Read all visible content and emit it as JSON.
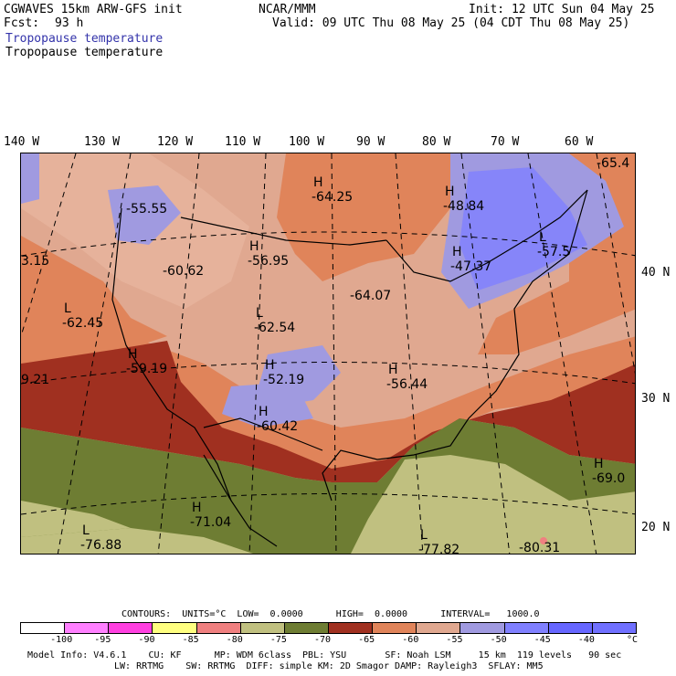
{
  "header": {
    "model_title": "CGWAVES 15km ARW-GFS init",
    "forecast_label": "Fcst:",
    "forecast_hours": "93 h",
    "org": "NCAR/MMM",
    "init": "Init: 12 UTC Sun 04 May 25",
    "valid": "Valid: 09 UTC Thu 08 May 25 (04 CDT Thu 08 May 25)",
    "field_1": "Tropopause temperature",
    "field_2": "Tropopause temperature",
    "field_1_color": "#3333aa"
  },
  "longitudes": [
    "140 W",
    "130 W",
    "120 W",
    "110 W",
    "100 W",
    "90 W",
    "80 W",
    "70 W",
    "60 W"
  ],
  "latitudes": [
    "40 N",
    "30 N",
    "20 N"
  ],
  "map_labels": [
    {
      "kind": "H",
      "value": "-64.25"
    },
    {
      "kind": "H",
      "value": "-48.84"
    },
    {
      "kind": "",
      "value": "-55.55"
    },
    {
      "kind": "",
      "value": "-65.4"
    },
    {
      "kind": "H",
      "value": "-56.95"
    },
    {
      "kind": "",
      "value": "-60.62"
    },
    {
      "kind": "H",
      "value": "-47.37"
    },
    {
      "kind": "L",
      "value": "-57.5"
    },
    {
      "kind": "",
      "value": "-64.07"
    },
    {
      "kind": "",
      "value": "3.15"
    },
    {
      "kind": "L",
      "value": "-62.45"
    },
    {
      "kind": "L",
      "value": "-62.54"
    },
    {
      "kind": "H",
      "value": "-59.19"
    },
    {
      "kind": "H",
      "value": "-52.19"
    },
    {
      "kind": "H",
      "value": "-56.44"
    },
    {
      "kind": "",
      "value": "9.21"
    },
    {
      "kind": "H",
      "value": "-60.42"
    },
    {
      "kind": "H",
      "value": "-69.0"
    },
    {
      "kind": "H",
      "value": "-71.04"
    },
    {
      "kind": "L",
      "value": "-76.88"
    },
    {
      "kind": "L",
      "value": "-77.82"
    },
    {
      "kind": "",
      "value": "-80.31"
    }
  ],
  "contours": {
    "line": "CONTOURS:  UNITS=°C  LOW=  0.0000      HIGH=  0.0000      INTERVAL=   1000.0"
  },
  "colorbar": {
    "colors": [
      "#ffffff",
      "#ff80ff",
      "#ff40e0",
      "#ffff80",
      "#f08080",
      "#c0c080",
      "#6e7d33",
      "#a03020",
      "#e0845a",
      "#e0a890",
      "#a09ae0",
      "#8080ff",
      "#6666ff",
      "#7070ff"
    ],
    "labels": [
      "-100",
      "-95",
      "-90",
      "-85",
      "-80",
      "-75",
      "-70",
      "-65",
      "-60",
      "-55",
      "-50",
      "-45",
      "-40"
    ],
    "unit": "°C"
  },
  "footer": {
    "line1": "Model Info: V4.6.1    CU: KF      MP: WDM 6class  PBL: YSU       SF: Noah LSM     15 km  119 levels   90 sec",
    "line2": "LW: RRTMG    SW: RRTMG  DIFF: simple KM: 2D Smagor DAMP: Rayleigh3  SFLAY: MM5"
  }
}
